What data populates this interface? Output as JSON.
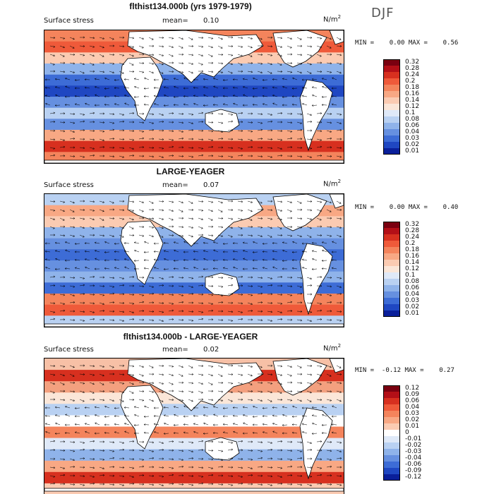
{
  "season": "DJF",
  "units": "N/m",
  "units_sup": "2",
  "panels": [
    {
      "title": "flthist134.000b (yrs 1979-1979)",
      "variable": "Surface stress",
      "mean_label": "mean=",
      "mean_value": "0.10",
      "minmax": "MIN =    0.00 MAX =    0.56",
      "colorbar": [
        "0.32",
        "0.28",
        "0.24",
        "0.2",
        "0.18",
        "0.16",
        "0.14",
        "0.12",
        "0.1",
        "0.08",
        "0.06",
        "0.04",
        "0.03",
        "0.02",
        "0.01"
      ],
      "colors": [
        "#7a0010",
        "#b30f17",
        "#d7301f",
        "#ef5a3a",
        "#f4845c",
        "#f8a884",
        "#fbcbb2",
        "#fbe6d8",
        "#dfe9f8",
        "#b9d1f2",
        "#8fb3ea",
        "#6690e0",
        "#3d6cd6",
        "#1f47c2",
        "#0a1f9a"
      ]
    },
    {
      "title": "LARGE-YEAGER",
      "variable": "Surface stress",
      "mean_label": "mean=",
      "mean_value": "0.07",
      "minmax": "MIN =    0.00 MAX =    0.40",
      "colorbar": [
        "0.32",
        "0.28",
        "0.24",
        "0.2",
        "0.18",
        "0.16",
        "0.14",
        "0.12",
        "0.1",
        "0.08",
        "0.06",
        "0.04",
        "0.03",
        "0.02",
        "0.01"
      ],
      "colors": [
        "#7a0010",
        "#b30f17",
        "#d7301f",
        "#ef5a3a",
        "#f4845c",
        "#f8a884",
        "#fbcbb2",
        "#fbe6d8",
        "#dfe9f8",
        "#b9d1f2",
        "#8fb3ea",
        "#6690e0",
        "#3d6cd6",
        "#1f47c2",
        "#0a1f9a"
      ]
    },
    {
      "title": "flthist134.000b - LARGE-YEAGER",
      "variable": "Surface stress",
      "mean_label": "mean=",
      "mean_value": "0.02",
      "minmax": "MIN =  -0.12 MAX =    0.27",
      "colorbar": [
        "0.12",
        "0.09",
        "0.06",
        "0.04",
        "0.03",
        "0.02",
        "0.01",
        "0",
        "-0.01",
        "-0.02",
        "-0.03",
        "-0.04",
        "-0.06",
        "-0.09",
        "-0.12"
      ],
      "colors": [
        "#7a0010",
        "#b30f17",
        "#d7301f",
        "#ef5a3a",
        "#f4845c",
        "#f8a884",
        "#fbcbb2",
        "#ffffff",
        "#dfe9f8",
        "#b9d1f2",
        "#8fb3ea",
        "#6690e0",
        "#3d6cd6",
        "#1f47c2",
        "#0a1f9a"
      ]
    }
  ],
  "chart_data": {
    "type": "heatmap",
    "description_kind": "global map of surface wind stress magnitude with vector arrows",
    "season": "DJF",
    "units": "N/m^2",
    "panels": [
      {
        "title": "flthist134.000b (yrs 1979-1979)",
        "mean": 0.1,
        "min": 0.0,
        "max": 0.56,
        "levels": [
          0.01,
          0.02,
          0.03,
          0.04,
          0.06,
          0.08,
          0.1,
          0.12,
          0.14,
          0.16,
          0.18,
          0.2,
          0.24,
          0.28,
          0.32
        ]
      },
      {
        "title": "LARGE-YEAGER",
        "mean": 0.07,
        "min": 0.0,
        "max": 0.4,
        "levels": [
          0.01,
          0.02,
          0.03,
          0.04,
          0.06,
          0.08,
          0.1,
          0.12,
          0.14,
          0.16,
          0.18,
          0.2,
          0.24,
          0.28,
          0.32
        ]
      },
      {
        "title": "flthist134.000b - LARGE-YEAGER",
        "mean": 0.02,
        "min": -0.12,
        "max": 0.27,
        "levels": [
          -0.12,
          -0.09,
          -0.06,
          -0.04,
          -0.03,
          -0.02,
          -0.01,
          0,
          0.01,
          0.02,
          0.03,
          0.04,
          0.06,
          0.09,
          0.12
        ]
      }
    ]
  }
}
